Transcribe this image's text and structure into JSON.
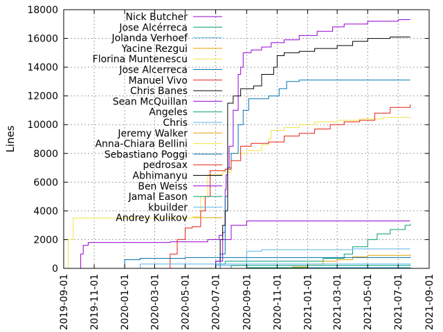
{
  "chart_data": {
    "type": "line",
    "title": "",
    "xlabel": "",
    "ylabel": "Lines",
    "xlim": [
      "2019-09-01",
      "2021-09-01"
    ],
    "ylim": [
      0,
      18000
    ],
    "grid": true,
    "legend_position": "top-left",
    "x_ticks": [
      "2019-09-01",
      "2019-11-01",
      "2020-01-01",
      "2020-03-01",
      "2020-05-01",
      "2020-07-01",
      "2020-09-01",
      "2020-11-01",
      "2021-01-01",
      "2021-03-01",
      "2021-05-01",
      "2021-07-01",
      "2021-09-01"
    ],
    "y_ticks": [
      0,
      2000,
      4000,
      6000,
      8000,
      10000,
      12000,
      14000,
      16000,
      18000
    ],
    "series": [
      {
        "name": "Nick Butcher",
        "color": "#9400d3",
        "points": [
          [
            "2019-10-01",
            0
          ],
          [
            "2019-10-05",
            1000
          ],
          [
            "2019-10-10",
            1600
          ],
          [
            "2019-10-20",
            1800
          ],
          [
            "2020-03-01",
            1800
          ],
          [
            "2020-04-01",
            1850
          ],
          [
            "2020-06-15",
            2000
          ],
          [
            "2020-07-08",
            2300
          ],
          [
            "2020-07-15",
            2500
          ],
          [
            "2020-07-20",
            5500
          ],
          [
            "2020-07-22",
            6500
          ],
          [
            "2020-07-25",
            7000
          ],
          [
            "2020-07-28",
            8500
          ],
          [
            "2020-08-05",
            11000
          ],
          [
            "2020-08-15",
            13500
          ],
          [
            "2020-08-20",
            14000
          ],
          [
            "2020-08-25",
            15000
          ],
          [
            "2020-09-10",
            15200
          ],
          [
            "2020-10-01",
            15400
          ],
          [
            "2020-10-20",
            15700
          ],
          [
            "2020-11-15",
            15900
          ],
          [
            "2020-12-15",
            16200
          ],
          [
            "2021-01-20",
            16500
          ],
          [
            "2021-02-20",
            16800
          ],
          [
            "2021-03-15",
            17000
          ],
          [
            "2021-05-01",
            17200
          ],
          [
            "2021-07-01",
            17300
          ],
          [
            "2021-07-25",
            17300
          ]
        ]
      },
      {
        "name": "Jose Alcérreca",
        "color": "#009e73",
        "points": [
          [
            "2020-06-01",
            0
          ],
          [
            "2020-07-01",
            300
          ],
          [
            "2020-07-20",
            500
          ],
          [
            "2020-09-01",
            500
          ],
          [
            "2021-02-01",
            700
          ],
          [
            "2021-03-15",
            1000
          ],
          [
            "2021-04-01",
            1500
          ],
          [
            "2021-05-01",
            2000
          ],
          [
            "2021-05-20",
            2400
          ],
          [
            "2021-06-15",
            2700
          ],
          [
            "2021-07-15",
            3000
          ],
          [
            "2021-07-25",
            3100
          ]
        ]
      },
      {
        "name": "Jolanda Verhoef",
        "color": "#56b4e9",
        "points": [
          [
            "2020-05-15",
            0
          ],
          [
            "2020-07-01",
            200
          ],
          [
            "2020-09-01",
            200
          ],
          [
            "2020-09-01",
            1200
          ],
          [
            "2020-10-01",
            1300
          ],
          [
            "2021-04-01",
            1350
          ],
          [
            "2021-07-25",
            1350
          ]
        ]
      },
      {
        "name": "Yacine Rezgui",
        "color": "#e69f00",
        "points": [
          [
            "2020-08-01",
            0
          ],
          [
            "2020-12-01",
            100
          ],
          [
            "2021-01-01",
            300
          ],
          [
            "2021-02-01",
            500
          ],
          [
            "2021-03-01",
            600
          ],
          [
            "2021-04-01",
            800
          ],
          [
            "2021-05-01",
            900
          ],
          [
            "2021-07-25",
            1000
          ]
        ]
      },
      {
        "name": "Florina Muntenescu",
        "color": "#f0e442",
        "points": [
          [
            "2019-09-01",
            0
          ],
          [
            "2019-09-10",
            2000
          ],
          [
            "2019-09-20",
            3500
          ],
          [
            "2020-04-15",
            3500
          ],
          [
            "2020-05-15",
            3600
          ],
          [
            "2020-06-01",
            5000
          ],
          [
            "2020-06-15",
            6500
          ],
          [
            "2020-07-15",
            6700
          ],
          [
            "2020-08-01",
            8000
          ],
          [
            "2020-09-01",
            8200
          ],
          [
            "2020-10-01",
            8600
          ],
          [
            "2020-10-15",
            9000
          ],
          [
            "2020-10-20",
            9600
          ],
          [
            "2020-11-15",
            9800
          ],
          [
            "2020-12-15",
            10000
          ],
          [
            "2021-01-15",
            10200
          ],
          [
            "2021-03-01",
            10300
          ],
          [
            "2021-04-15",
            10400
          ],
          [
            "2021-06-01",
            10500
          ],
          [
            "2021-07-25",
            10550
          ]
        ]
      },
      {
        "name": "Jose Alcerreca",
        "color": "#0072b2",
        "points": [
          [
            "2020-06-15",
            0
          ],
          [
            "2020-07-10",
            1000
          ],
          [
            "2020-07-20",
            5000
          ],
          [
            "2020-07-25",
            7000
          ],
          [
            "2020-08-01",
            8000
          ],
          [
            "2020-08-15",
            10000
          ],
          [
            "2020-08-25",
            11000
          ],
          [
            "2020-09-05",
            11800
          ],
          [
            "2020-10-15",
            12000
          ],
          [
            "2020-11-05",
            12500
          ],
          [
            "2020-11-20",
            13000
          ],
          [
            "2020-12-15",
            13100
          ],
          [
            "2021-07-25",
            13100
          ]
        ]
      },
      {
        "name": "Manuel Vivo",
        "color": "#e51e10",
        "points": [
          [
            "2020-03-15",
            0
          ],
          [
            "2020-04-01",
            1000
          ],
          [
            "2020-04-15",
            2000
          ],
          [
            "2020-05-01",
            2800
          ],
          [
            "2020-05-15",
            2900
          ],
          [
            "2020-06-01",
            4000
          ],
          [
            "2020-06-10",
            5000
          ],
          [
            "2020-06-20",
            6800
          ],
          [
            "2020-07-20",
            6900
          ],
          [
            "2020-08-01",
            7500
          ],
          [
            "2020-08-20",
            8500
          ],
          [
            "2020-09-10",
            8700
          ],
          [
            "2020-10-15",
            8800
          ],
          [
            "2020-11-15",
            9200
          ],
          [
            "2020-12-15",
            9400
          ],
          [
            "2021-01-15",
            9700
          ],
          [
            "2021-02-15",
            10000
          ],
          [
            "2021-03-15",
            10200
          ],
          [
            "2021-04-15",
            10300
          ],
          [
            "2021-05-15",
            10800
          ],
          [
            "2021-06-15",
            11200
          ],
          [
            "2021-07-25",
            11400
          ]
        ]
      },
      {
        "name": "Chris Banes",
        "color": "#000000",
        "points": [
          [
            "2020-06-15",
            0
          ],
          [
            "2020-07-01",
            500
          ],
          [
            "2020-07-10",
            2000
          ],
          [
            "2020-07-15",
            3000
          ],
          [
            "2020-07-20",
            4000
          ],
          [
            "2020-07-25",
            11500
          ],
          [
            "2020-08-05",
            12000
          ],
          [
            "2020-08-20",
            12500
          ],
          [
            "2020-09-15",
            12700
          ],
          [
            "2020-10-01",
            13500
          ],
          [
            "2020-10-25",
            14000
          ],
          [
            "2020-11-01",
            14800
          ],
          [
            "2020-11-15",
            15000
          ],
          [
            "2020-12-15",
            15100
          ],
          [
            "2021-01-15",
            15300
          ],
          [
            "2021-03-01",
            15500
          ],
          [
            "2021-04-01",
            15800
          ],
          [
            "2021-05-01",
            16000
          ],
          [
            "2021-06-15",
            16100
          ],
          [
            "2021-07-25",
            16100
          ]
        ]
      },
      {
        "name": "Sean McQuillan",
        "color": "#9400d3",
        "points": [
          [
            "2020-06-01",
            0
          ],
          [
            "2020-07-01",
            500
          ],
          [
            "2020-07-15",
            2000
          ],
          [
            "2020-08-01",
            3000
          ],
          [
            "2020-09-01",
            3300
          ],
          [
            "2021-07-25",
            3300
          ]
        ]
      },
      {
        "name": "Angeles",
        "color": "#009e73",
        "points": [
          [
            "2020-07-01",
            0
          ],
          [
            "2020-09-01",
            50
          ],
          [
            "2021-07-25",
            80
          ]
        ]
      },
      {
        "name": "Chris",
        "color": "#56b4e9",
        "points": [
          [
            "2020-08-01",
            0
          ],
          [
            "2021-01-01",
            60
          ],
          [
            "2021-07-25",
            80
          ]
        ]
      },
      {
        "name": "Jeremy Walker",
        "color": "#e69f00",
        "points": [
          [
            "2020-09-01",
            0
          ],
          [
            "2021-07-25",
            60
          ]
        ]
      },
      {
        "name": "Anna-Chiara Bellini",
        "color": "#f0e442",
        "points": [
          [
            "2020-10-01",
            0
          ],
          [
            "2021-07-25",
            40
          ]
        ]
      },
      {
        "name": "Sebastiano Poggi",
        "color": "#0072b2",
        "points": [
          [
            "2019-12-01",
            0
          ],
          [
            "2020-01-01",
            600
          ],
          [
            "2020-02-01",
            700
          ],
          [
            "2020-05-01",
            750
          ],
          [
            "2021-07-25",
            800
          ]
        ]
      },
      {
        "name": "pedrosax",
        "color": "#e51e10",
        "points": [
          [
            "2020-12-01",
            0
          ],
          [
            "2021-07-25",
            30
          ]
        ]
      },
      {
        "name": "Abhimanyu",
        "color": "#000000",
        "points": [
          [
            "2021-01-01",
            0
          ],
          [
            "2021-07-25",
            20
          ]
        ]
      },
      {
        "name": "Ben Weiss",
        "color": "#9400d3",
        "points": [
          [
            "2021-02-01",
            0
          ],
          [
            "2021-07-25",
            15
          ]
        ]
      },
      {
        "name": "Jamal Eason",
        "color": "#009e73",
        "points": [
          [
            "2020-07-01",
            0
          ],
          [
            "2020-08-01",
            200
          ],
          [
            "2021-07-25",
            250
          ]
        ]
      },
      {
        "name": "kbuilder",
        "color": "#56b4e9",
        "points": [
          [
            "2020-01-01",
            0
          ],
          [
            "2020-02-01",
            300
          ],
          [
            "2021-07-25",
            350
          ]
        ]
      },
      {
        "name": "Andrey Kulikov",
        "color": "#e69f00",
        "points": [
          [
            "2020-09-01",
            0
          ],
          [
            "2021-07-25",
            40
          ]
        ]
      }
    ]
  }
}
